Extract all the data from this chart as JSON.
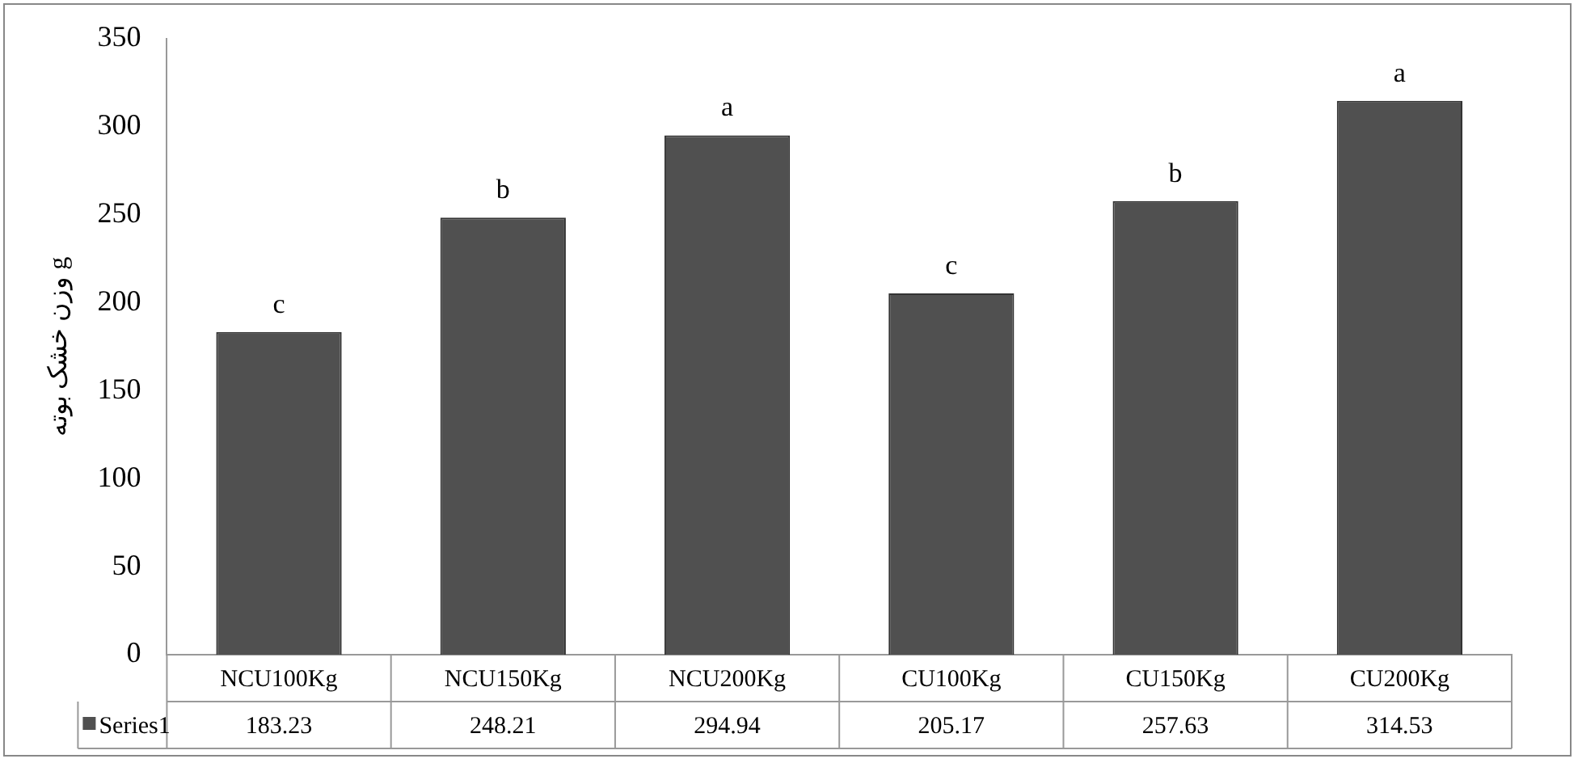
{
  "chart_data": {
    "type": "bar",
    "ylabel": "وزن خشک بوته g",
    "categories": [
      "NCU100Kg",
      "NCU150Kg",
      "NCU200Kg",
      "CU100Kg",
      "CU150Kg",
      "CU200Kg"
    ],
    "series": [
      {
        "name": "Series1",
        "color": "#505050",
        "values": [
          183.23,
          248.21,
          294.94,
          205.17,
          257.63,
          314.53
        ]
      }
    ],
    "ylim": [
      0,
      350
    ],
    "yticks": [
      0,
      50,
      100,
      150,
      200,
      250,
      300,
      350
    ],
    "grid": false,
    "legend": "bottom",
    "data_labels": true,
    "annotations": [
      {
        "text": "c",
        "x": "NCU100Kg",
        "y": 183.23
      },
      {
        "text": "b",
        "x": "NCU150Kg",
        "y": 248.21
      },
      {
        "text": "a",
        "x": "NCU200Kg",
        "y": 294.94
      },
      {
        "text": "c",
        "x": "CU100Kg",
        "y": 205.17
      },
      {
        "text": "b",
        "x": "CU150Kg",
        "y": 257.63
      },
      {
        "text": "a",
        "x": "CU200Kg",
        "y": 314.53
      }
    ]
  }
}
